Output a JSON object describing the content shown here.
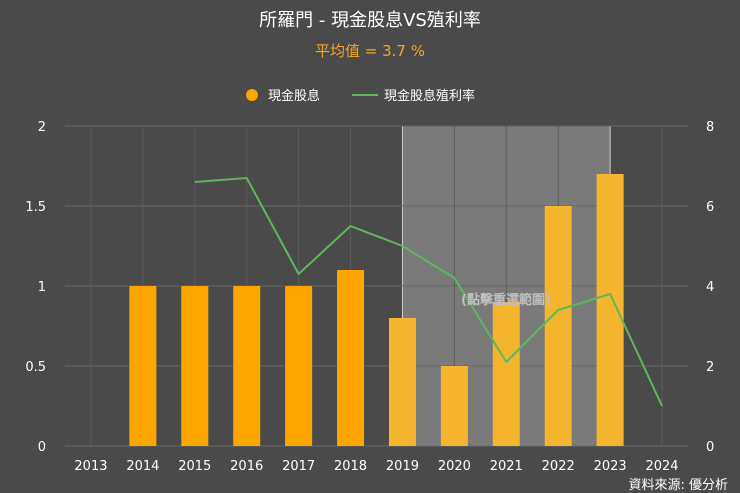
{
  "chart_data": {
    "type": "bar",
    "title": "所羅門 - 現金股息VS殖利率",
    "subtitle": "平均值 = 3.7 %",
    "categories": [
      "2013",
      "2014",
      "2015",
      "2016",
      "2017",
      "2018",
      "2019",
      "2020",
      "2021",
      "2022",
      "2023",
      "2024"
    ],
    "series": [
      {
        "name": "現金股息",
        "type": "bar",
        "axis": "left",
        "color": "#ffa500",
        "values": [
          null,
          1.0,
          1.0,
          1.0,
          1.0,
          1.1,
          0.8,
          0.5,
          0.9,
          1.5,
          1.7,
          null
        ]
      },
      {
        "name": "現金股息殖利率",
        "type": "line",
        "axis": "right",
        "color": "#5cb85c",
        "values": [
          null,
          null,
          6.6,
          6.7,
          4.3,
          5.5,
          5.0,
          4.2,
          2.1,
          3.4,
          3.8,
          1.0
        ]
      }
    ],
    "y_left": {
      "min": 0,
      "max": 2,
      "ticks": [
        "0",
        "0.5",
        "1",
        "1.5",
        "2"
      ]
    },
    "y_right": {
      "min": 0,
      "max": 8,
      "ticks": [
        "0",
        "2",
        "4",
        "6",
        "8"
      ]
    },
    "legend_position": "top-center",
    "grid": true,
    "highlight_range": {
      "from": "2019",
      "to": "2023",
      "label": "(點擊重選範圍)"
    },
    "source": "資料來源: 優分析"
  },
  "colors": {
    "background": "#4a4a4a",
    "bar": "#ffa500",
    "line": "#5cb85c",
    "subtitle": "#f5a623",
    "text": "#ffffff",
    "grid": "#6a6a6a"
  }
}
